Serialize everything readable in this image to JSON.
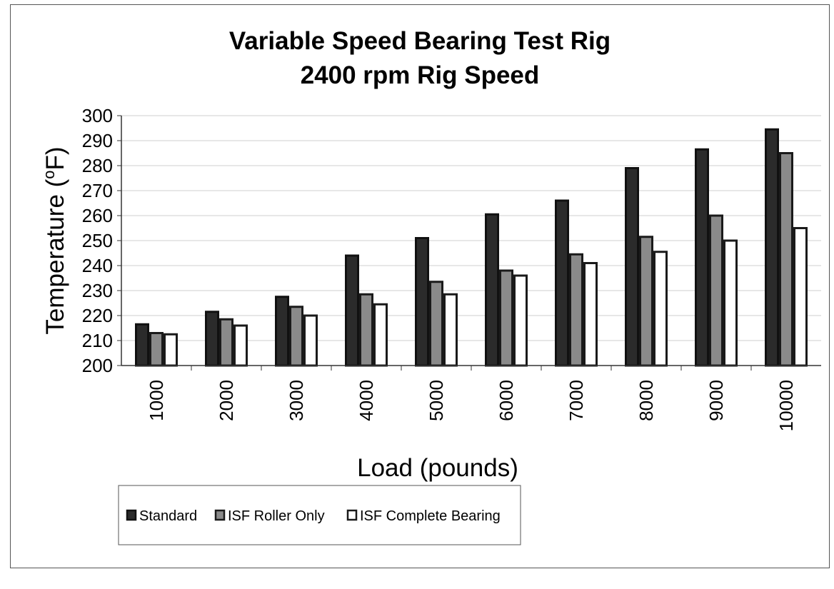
{
  "chart_data": {
    "type": "bar",
    "title": [
      "Variable Speed Bearing Test Rig",
      "2400 rpm Rig Speed"
    ],
    "xlabel": "Load (pounds)",
    "ylabel": "Temperature (°F)",
    "ylabel_parts": {
      "before": "Temperature (",
      "superscript": "o",
      "after": "F)"
    },
    "ylim": [
      200,
      300
    ],
    "yticks": [
      200,
      210,
      220,
      230,
      240,
      250,
      260,
      270,
      280,
      290,
      300
    ],
    "grid": true,
    "legend_position": "bottom-left",
    "categories": [
      "1000",
      "2000",
      "3000",
      "4000",
      "5000",
      "6000",
      "7000",
      "8000",
      "9000",
      "10000"
    ],
    "series": [
      {
        "name": "Standard",
        "color": "#2b2b2b",
        "stroke": "#111111",
        "values": [
          216.5,
          221.5,
          227.5,
          244,
          251,
          260.5,
          266,
          279,
          286.5,
          294.5
        ]
      },
      {
        "name": "ISF Roller Only",
        "color": "#8a8a8a",
        "stroke": "#1a1a1a",
        "values": [
          213,
          218.5,
          223.5,
          228.5,
          233.5,
          238,
          244.5,
          251.5,
          260,
          285
        ]
      },
      {
        "name": "ISF Complete Bearing",
        "color": "#ffffff",
        "stroke": "#1a1a1a",
        "values": [
          212.5,
          216,
          220,
          224.5,
          228.5,
          236,
          241,
          245.5,
          250,
          255
        ]
      }
    ]
  }
}
